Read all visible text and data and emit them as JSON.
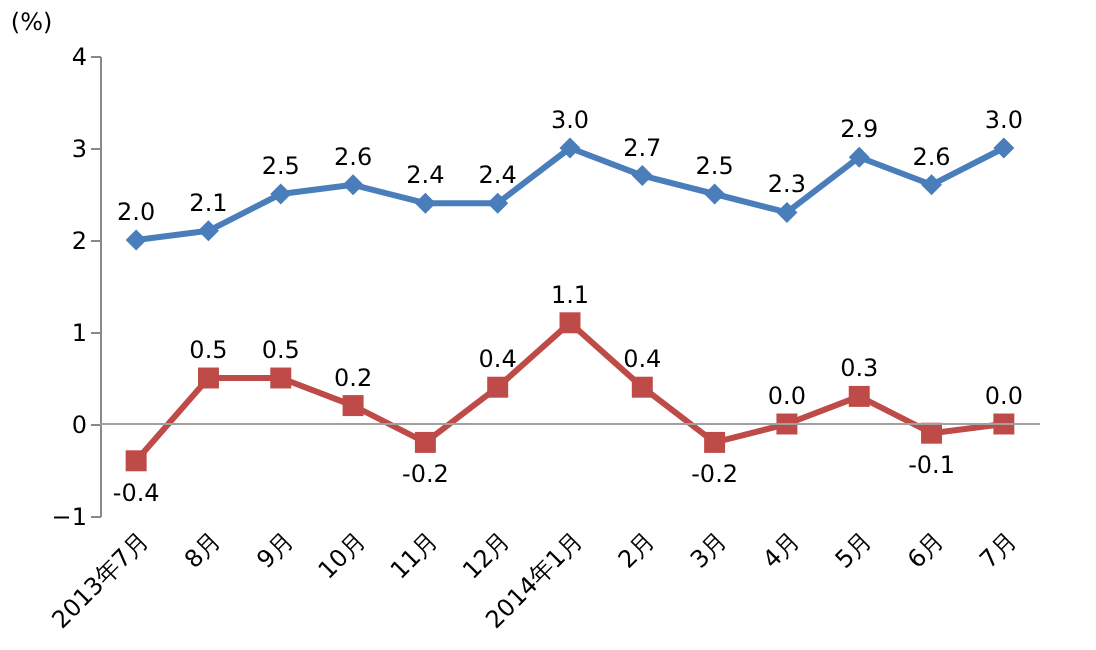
{
  "chart_data": {
    "type": "line",
    "ylabel": "(%)",
    "categories": [
      "2013年7月",
      "8月",
      "9月",
      "10月",
      "11月",
      "12月",
      "2014年1月",
      "2月",
      "3月",
      "4月",
      "5月",
      "6月",
      "7月"
    ],
    "series": [
      {
        "color": "#4a7ebb",
        "marker": "diamond",
        "values": [
          2.0,
          2.1,
          2.5,
          2.6,
          2.4,
          2.4,
          3.0,
          2.7,
          2.5,
          2.3,
          2.9,
          2.6,
          3.0
        ],
        "value_labels": [
          "2.0",
          "2.1",
          "2.5",
          "2.6",
          "2.4",
          "2.4",
          "3.0",
          "2.7",
          "2.5",
          "2.3",
          "2.9",
          "2.6",
          "3.0"
        ]
      },
      {
        "color": "#be4b48",
        "marker": "square",
        "values": [
          -0.4,
          0.5,
          0.5,
          0.2,
          -0.2,
          0.4,
          1.1,
          0.4,
          -0.2,
          0.0,
          0.3,
          -0.1,
          0.0
        ],
        "value_labels": [
          "-0.4",
          "0.5",
          "0.5",
          "0.2",
          "-0.2",
          "0.4",
          "1.1",
          "0.4",
          "-0.2",
          "0.0",
          "0.3",
          "-0.1",
          "0.0"
        ]
      }
    ],
    "ylim": [
      -1,
      4
    ],
    "yticks": [
      -1,
      0,
      1,
      2,
      3,
      4
    ],
    "ref_lines": [
      {
        "axis": "y",
        "value": 0,
        "color": "#a0a0a0"
      }
    ],
    "grid": false,
    "line_style": "solid"
  }
}
